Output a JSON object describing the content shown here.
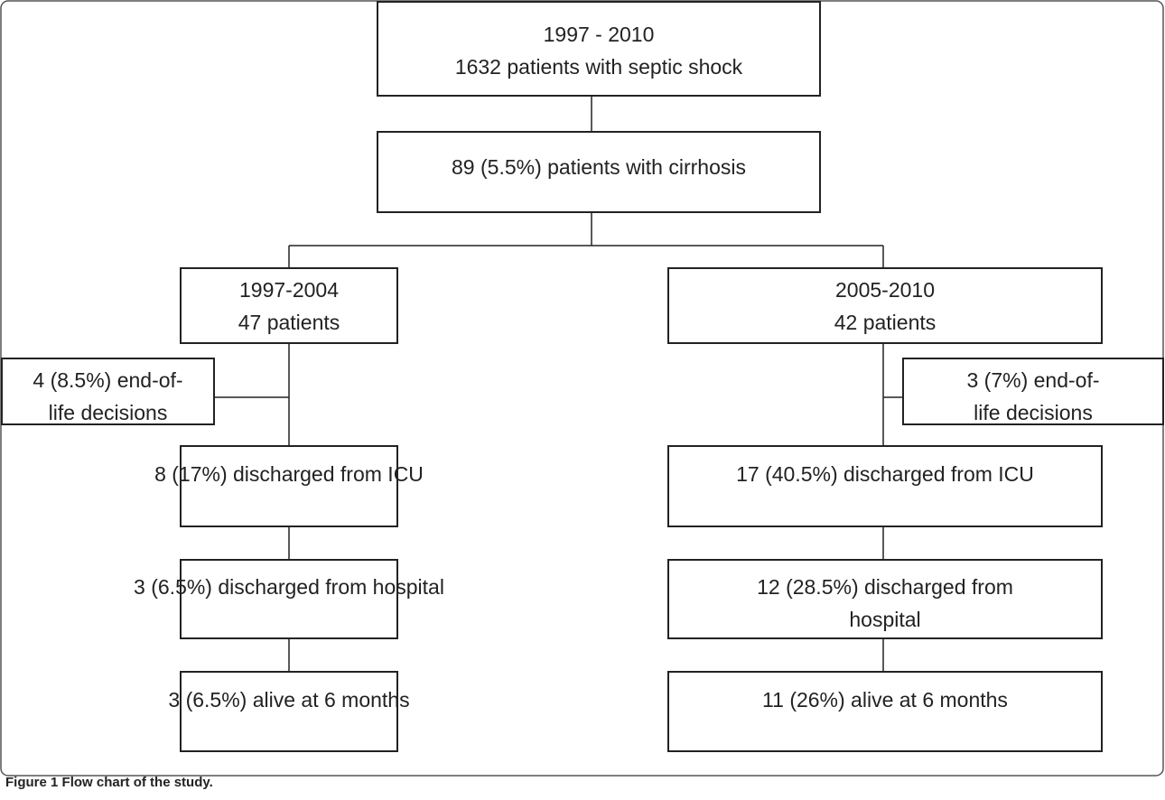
{
  "nodes": [
    {
      "lines": [
        "1997 - 2010",
        "1632 patients with septic shock"
      ]
    },
    {
      "lines": [
        "89 (5.5%) patients with cirrhosis"
      ]
    },
    {
      "lines": [
        "1997-2004",
        "47 patients"
      ]
    },
    {
      "lines": [
        "2005-2010",
        "42 patients"
      ]
    },
    {
      "lines": [
        "4 (8.5%) end-of-",
        "life decisions"
      ]
    },
    {
      "lines": [
        "3 (7%) end-of-",
        "life decisions"
      ]
    },
    {
      "lines": [
        "8 (17%) discharged from ICU"
      ]
    },
    {
      "lines": [
        "17 (40.5%) discharged from ICU"
      ]
    },
    {
      "lines": [
        "3 (6.5%) discharged from hospital"
      ]
    },
    {
      "lines": [
        "12 (28.5%) discharged from",
        "hospital"
      ]
    },
    {
      "lines": [
        "3 (6.5%) alive at 6 months"
      ]
    },
    {
      "lines": [
        "11 (26%) alive at 6 months"
      ]
    }
  ],
  "caption": {
    "label": "Figure 1",
    "text": "Flow chart of the study."
  }
}
